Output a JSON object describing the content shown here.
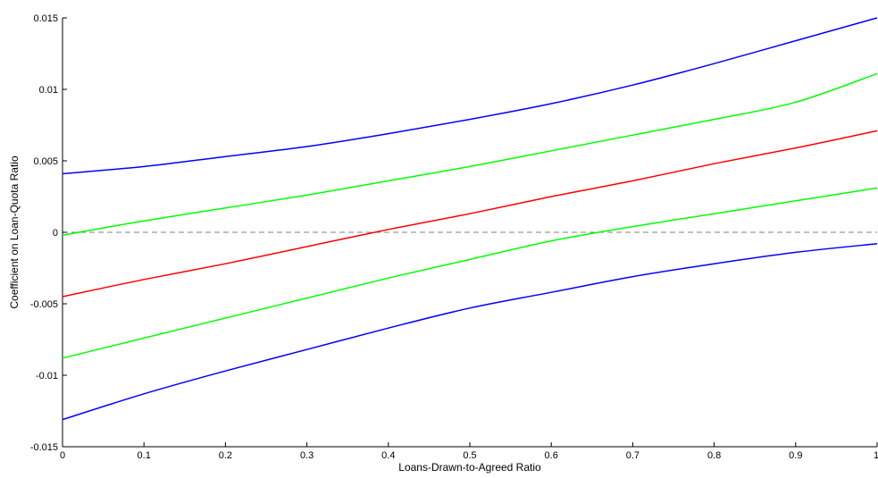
{
  "chart_data": {
    "type": "line",
    "title": "",
    "xlabel": "Loans-Drawn-to-Agreed Ratio",
    "ylabel": "Coefficient on Loan-Quota Ratio",
    "xlim": [
      0,
      1
    ],
    "ylim": [
      -0.015,
      0.015
    ],
    "x_ticks": [
      0,
      0.1,
      0.2,
      0.3,
      0.4,
      0.5,
      0.6,
      0.7,
      0.8,
      0.9,
      1
    ],
    "x_tick_labels": [
      "0",
      "0.1",
      "0.2",
      "0.3",
      "0.4",
      "0.5",
      "0.6",
      "0.7",
      "0.8",
      "0.9",
      "1"
    ],
    "y_ticks": [
      -0.015,
      -0.01,
      -0.005,
      0,
      0.005,
      0.01,
      0.015
    ],
    "y_tick_labels": [
      "-0.015",
      "-0.01",
      "-0.005",
      "0",
      "0.005",
      "0.01",
      "0.015"
    ],
    "grid": false,
    "legend": "none",
    "reference_line": {
      "y": 0,
      "style": "dashed",
      "color": "#808080"
    },
    "x": [
      0,
      0.1,
      0.2,
      0.3,
      0.4,
      0.5,
      0.6,
      0.7,
      0.8,
      0.9,
      1
    ],
    "series": [
      {
        "color": "#0000ff",
        "values": [
          0.0041,
          0.0046,
          0.0053,
          0.006,
          0.0069,
          0.0079,
          0.009,
          0.0103,
          0.0118,
          0.0134,
          0.015
        ]
      },
      {
        "color": "#00ff00",
        "values": [
          -0.0002,
          0.0008,
          0.0017,
          0.0026,
          0.0036,
          0.0046,
          0.0057,
          0.0068,
          0.0079,
          0.0091,
          0.0111
        ]
      },
      {
        "color": "#ff0000",
        "values": [
          -0.0045,
          -0.0033,
          -0.0022,
          -0.001,
          0.0002,
          0.0013,
          0.0025,
          0.0036,
          0.0048,
          0.0059,
          0.0071
        ]
      },
      {
        "color": "#00ff00",
        "values": [
          -0.0088,
          -0.0074,
          -0.006,
          -0.0046,
          -0.0032,
          -0.0019,
          -0.0006,
          0.0004,
          0.0013,
          0.0022,
          0.0031
        ]
      },
      {
        "color": "#0000ff",
        "values": [
          -0.0131,
          -0.0113,
          -0.0097,
          -0.0082,
          -0.0067,
          -0.0053,
          -0.0042,
          -0.0031,
          -0.0022,
          -0.0014,
          -0.0008
        ]
      }
    ]
  }
}
